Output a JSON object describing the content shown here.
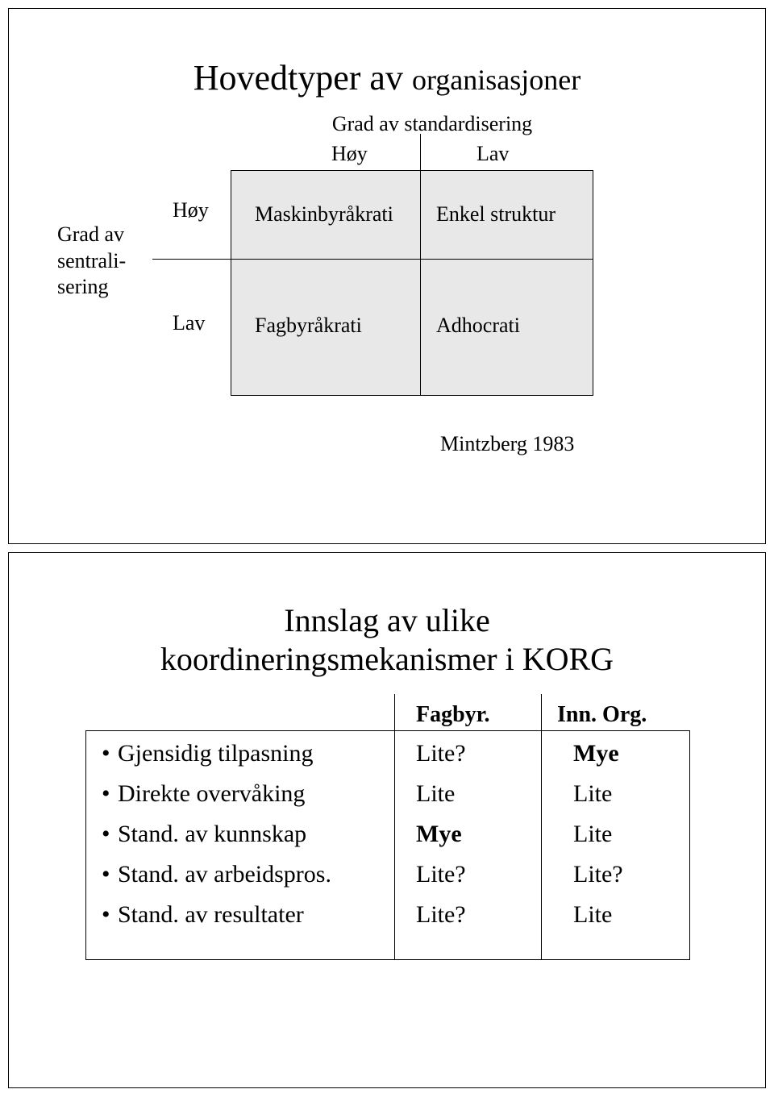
{
  "slide1": {
    "title_main": "Hovedtyper av ",
    "title_sub": "organisasjoner",
    "col_axis": "Grad av standardisering",
    "col_high": "Høy",
    "col_low": "Lav",
    "row_axis_l1": "Grad av",
    "row_axis_l2": "sentrali-",
    "row_axis_l3": "sering",
    "row_high": "Høy",
    "row_low": "Lav",
    "q1": "Maskinbyråkrati",
    "q2": "Enkel struktur",
    "q3": "Fagbyråkrati",
    "q4": "Adhocrati",
    "source": "Mintzberg 1983",
    "matrix_bg": "#e8e8e8",
    "border_color": "#000000"
  },
  "slide2": {
    "title_l1": "Innslag av ulike",
    "title_l2": "koordineringsmekanismer i KORG",
    "header1": "Fagbyr.",
    "header2": "Inn. Org.",
    "rows": [
      {
        "label": "Gjensidig tilpasning",
        "c1": "Lite?",
        "c1_bold": false,
        "c2": "Mye",
        "c2_bold": true
      },
      {
        "label": "Direkte overvåking",
        "c1": "Lite",
        "c1_bold": false,
        "c2": "Lite",
        "c2_bold": false
      },
      {
        "label": "Stand. av kunnskap",
        "c1": "Mye",
        "c1_bold": true,
        "c2": "Lite",
        "c2_bold": false
      },
      {
        "label": "Stand. av arbeidspros.",
        "c1": "Lite?",
        "c1_bold": false,
        "c2": "Lite?",
        "c2_bold": false
      },
      {
        "label": "Stand. av resultater",
        "c1": "Lite?",
        "c1_bold": false,
        "c2": "Lite",
        "c2_bold": false
      }
    ]
  }
}
